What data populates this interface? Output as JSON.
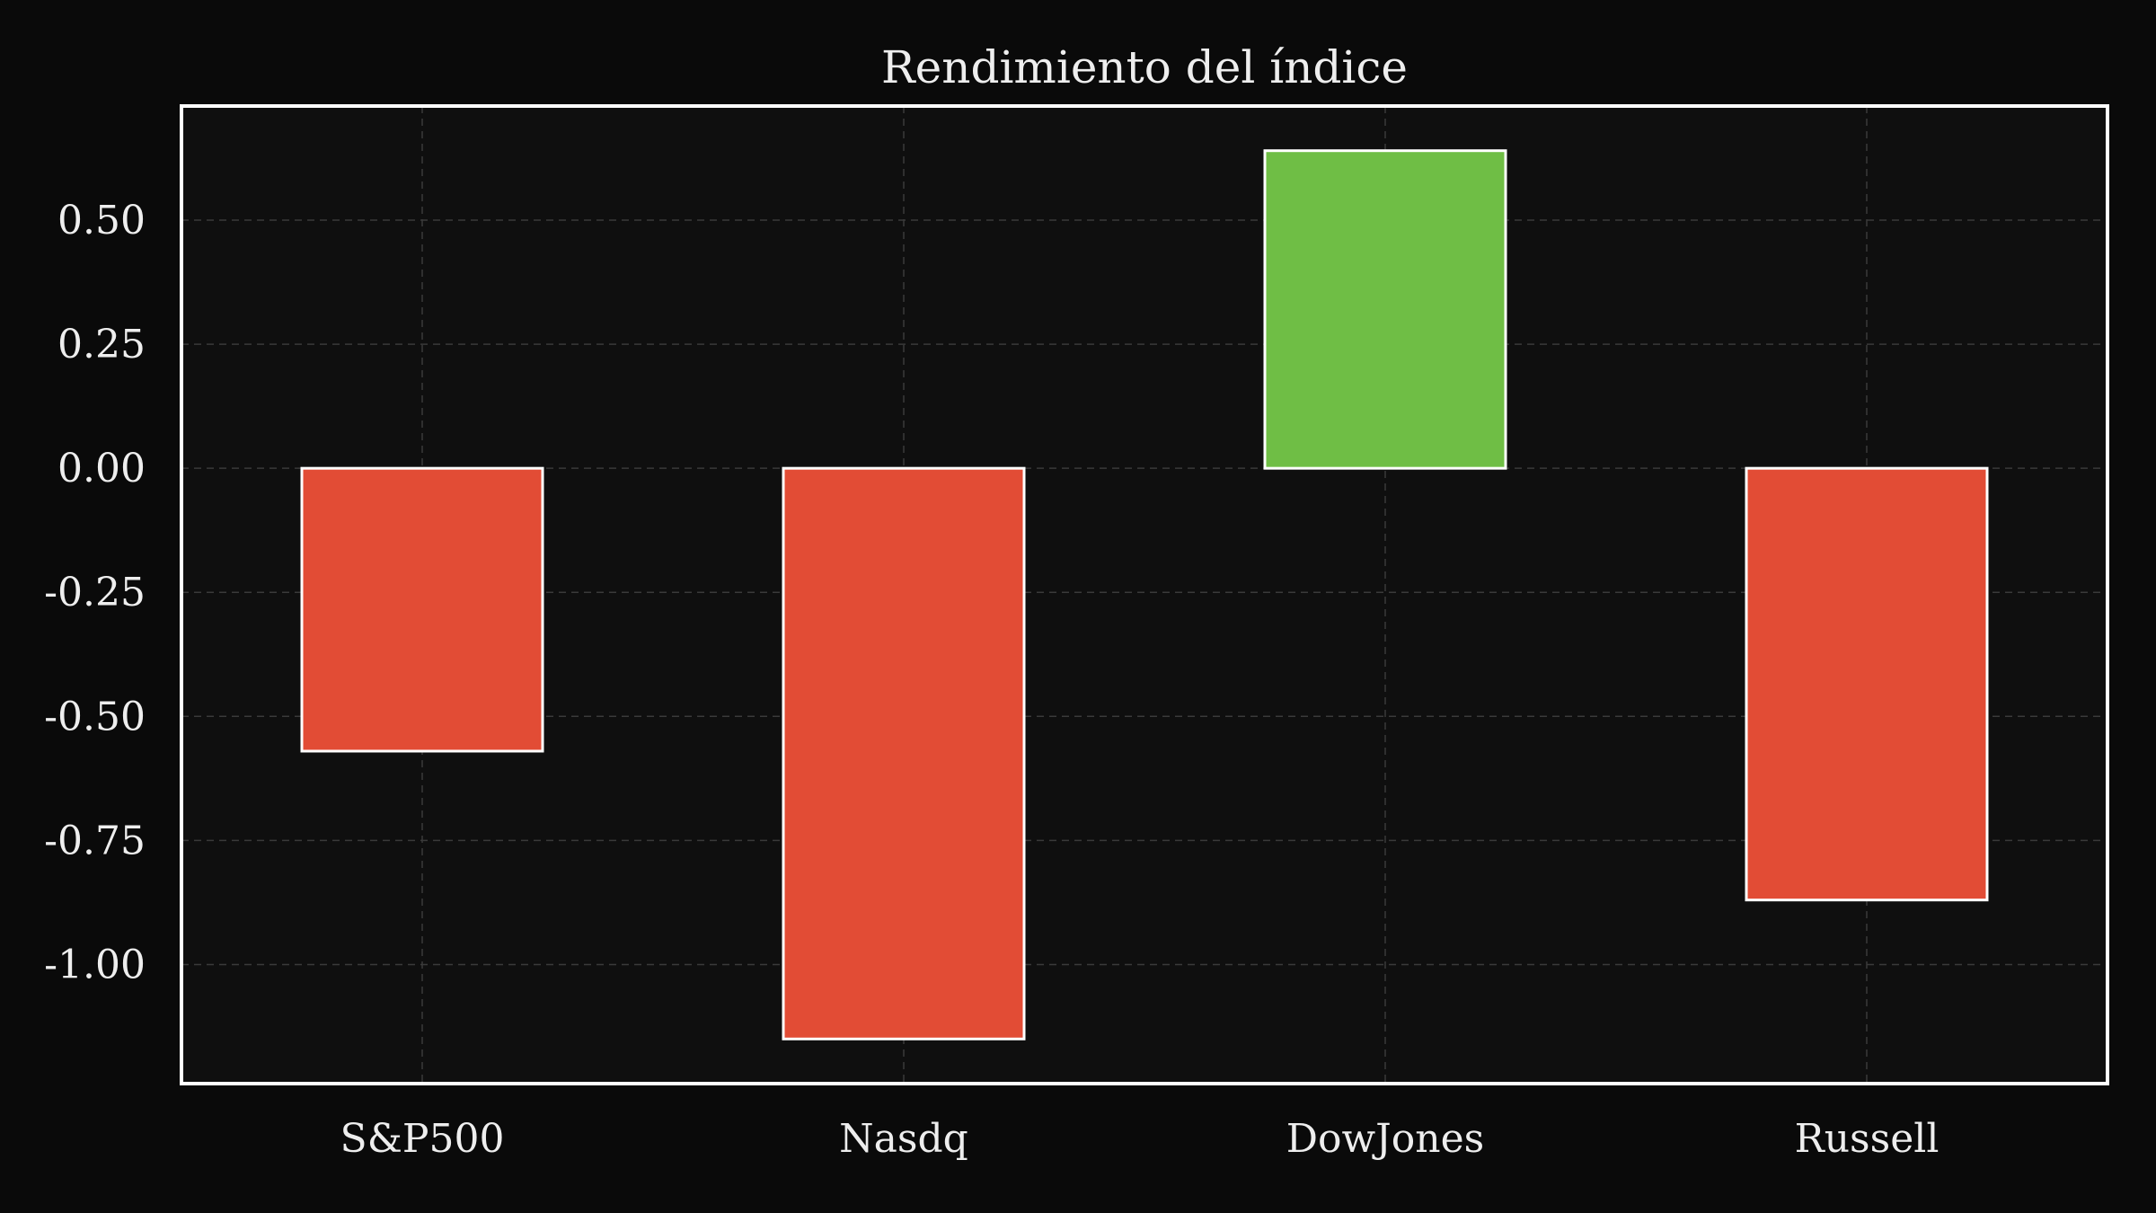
{
  "chart_data": {
    "type": "bar",
    "title": "Rendimiento del índice",
    "xlabel": "",
    "ylabel": "",
    "categories": [
      "S&P500",
      "Nasdq",
      "DowJones",
      "Russell"
    ],
    "values": [
      -0.57,
      -1.15,
      0.64,
      -0.87
    ],
    "ylim": [
      -1.24,
      0.73
    ],
    "yticks": [
      0.5,
      0.25,
      0.0,
      -0.25,
      -0.5,
      -0.75,
      -1.0
    ],
    "ytick_labels": [
      "0.50",
      "0.25",
      "0.00",
      "-0.25",
      "-0.50",
      "-0.75",
      "-1.00"
    ],
    "grid": true,
    "legend": "none",
    "colors": {
      "positive": "#6fbe45",
      "negative": "#e24c35",
      "background": "#0a0a0a",
      "plot_background": "#0f0f0f",
      "frame": "#ffffff",
      "text": "#eeeeee"
    }
  }
}
